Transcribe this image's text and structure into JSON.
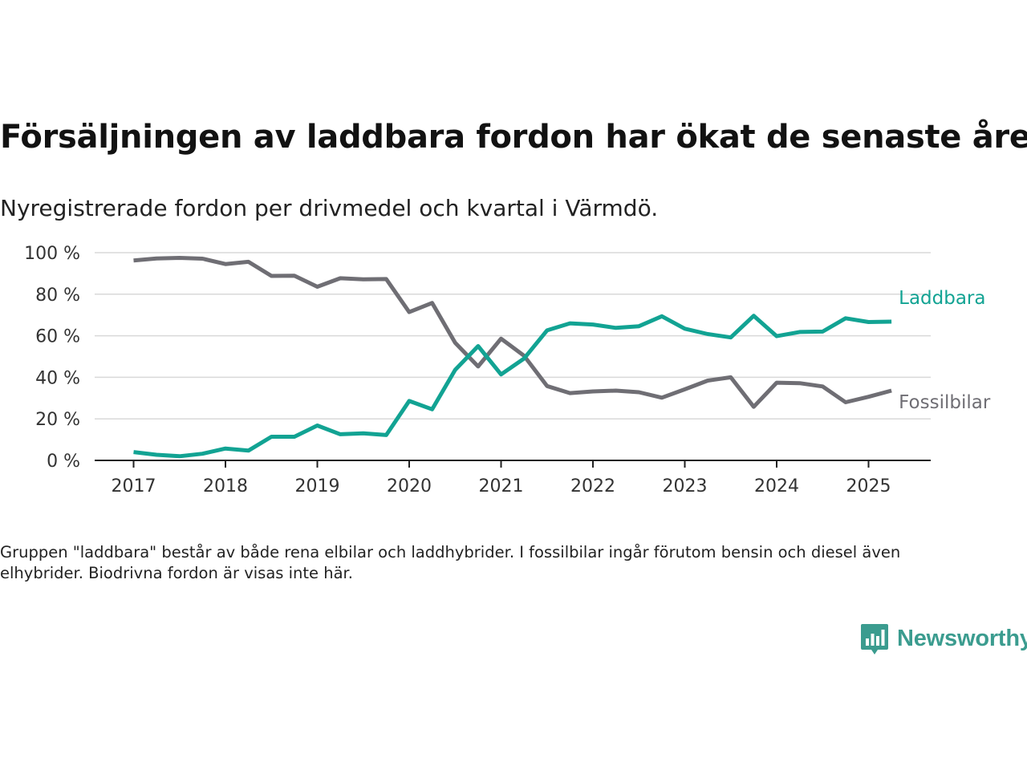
{
  "title": "Försäljningen av laddbara fordon har ökat de senaste åren",
  "subtitle": "Nyregistrerade fordon per drivmedel och kvartal i Värmdö.",
  "note": "Gruppen \"laddbara\" består av både rena elbilar och laddhybrider. I fossilbilar ingår förutom bensin och diesel även elhybrider. Biodrivna fordon är visas inte här.",
  "brand": {
    "name": "Newsworthy",
    "color": "#3b9c8f"
  },
  "chart_data": {
    "type": "line",
    "y_unit": "%",
    "ylim": [
      0,
      100
    ],
    "yticks": [
      0,
      20,
      40,
      60,
      80,
      100
    ],
    "ytick_labels": [
      "0 %",
      "20 %",
      "40 %",
      "60 %",
      "80 %",
      "100 %"
    ],
    "xticks": [
      2017,
      2018,
      2019,
      2020,
      2021,
      2022,
      2023,
      2024,
      2025
    ],
    "xtick_labels": [
      "2017",
      "2018",
      "2019",
      "2020",
      "2021",
      "2022",
      "2023",
      "2024",
      "2025"
    ],
    "grid": true,
    "x": [
      2017.0,
      2017.25,
      2017.5,
      2017.75,
      2018.0,
      2018.25,
      2018.5,
      2018.75,
      2019.0,
      2019.25,
      2019.5,
      2019.75,
      2020.0,
      2020.25,
      2020.5,
      2020.75,
      2021.0,
      2021.25,
      2021.5,
      2021.75,
      2022.0,
      2022.25,
      2022.5,
      2022.75,
      2023.0,
      2023.25,
      2023.5,
      2023.75,
      2024.0,
      2024.25,
      2024.5,
      2024.75,
      2025.0,
      2025.25
    ],
    "series": [
      {
        "name": "Laddbara",
        "color": "#12a393",
        "values": [
          4,
          2.7,
          2,
          3.2,
          5.7,
          4.7,
          11.4,
          11.4,
          16.8,
          12.6,
          13,
          12.2,
          28.6,
          24.6,
          43.6,
          55,
          41.4,
          49,
          62.6,
          66,
          65.4,
          63.8,
          64.6,
          69.4,
          63.4,
          60.8,
          59.2,
          69.6,
          59.8,
          61.8,
          62,
          68.4,
          66.6,
          66.8
        ]
      },
      {
        "name": "Fossilbilar",
        "color": "#6f6e74",
        "values": [
          96.2,
          97.2,
          97.5,
          97.1,
          94.5,
          95.6,
          88.8,
          88.9,
          83.6,
          87.7,
          87.2,
          87.3,
          71.4,
          75.8,
          56.6,
          45.2,
          58.6,
          50.4,
          35.8,
          32.4,
          33.2,
          33.6,
          32.8,
          30.2,
          34.2,
          38.4,
          40,
          25.8,
          37.4,
          37.2,
          35.6,
          28,
          30.6,
          33.6
        ]
      }
    ]
  }
}
